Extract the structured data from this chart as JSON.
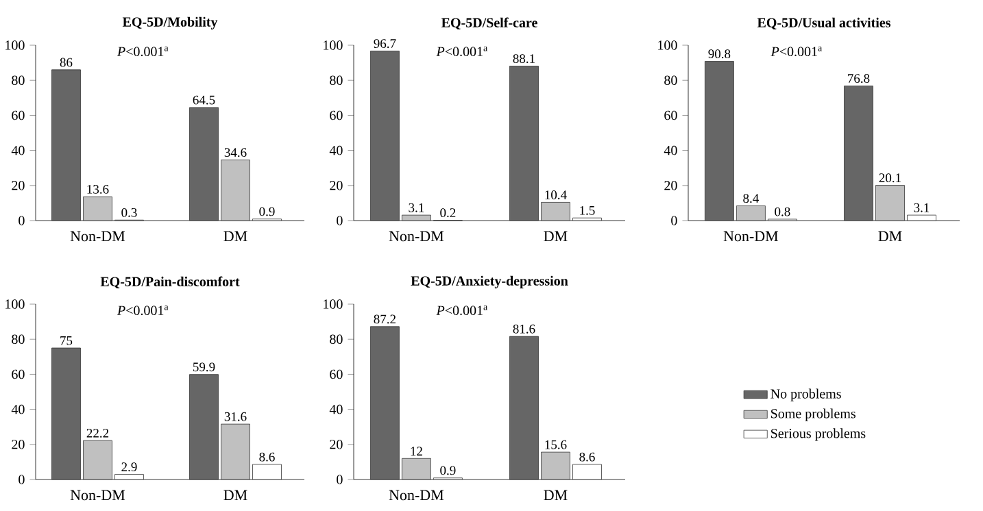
{
  "chart_data": [
    {
      "type": "bar",
      "title": "EQ-5D/Mobility",
      "annotations": [
        "*P*<0.001$^{a}$"
      ],
      "categories": [
        "Non-DM",
        "DM"
      ],
      "series": [
        {
          "color": "#666666",
          "values": [
            86,
            64.5
          ]
        },
        {
          "color": "#c0c0c0",
          "values": [
            13.6,
            34.6
          ]
        },
        {
          "color": "#ffffff",
          "values": [
            0.3,
            0.9
          ]
        }
      ],
      "ylim": [
        0,
        100
      ],
      "yticks": [
        0,
        20,
        40,
        60,
        80,
        100
      ],
      "data_labels": true
    },
    {
      "type": "bar",
      "title": "EQ-5D/Self-care",
      "annotations": [
        "*P*<0.001$^{a}$"
      ],
      "categories": [
        "Non-DM",
        "DM"
      ],
      "series": [
        {
          "color": "#666666",
          "values": [
            96.7,
            88.1
          ]
        },
        {
          "color": "#c0c0c0",
          "values": [
            3.1,
            10.4
          ]
        },
        {
          "color": "#ffffff",
          "values": [
            0.2,
            1.5
          ]
        }
      ],
      "ylim": [
        0,
        100
      ],
      "yticks": [
        0,
        20,
        40,
        60,
        80,
        100
      ],
      "data_labels": true
    },
    {
      "type": "bar",
      "title": "EQ-5D/Usual activities",
      "annotations": [
        "*P*<0.001$^{a}$"
      ],
      "categories": [
        "Non-DM",
        "DM"
      ],
      "series": [
        {
          "color": "#666666",
          "values": [
            90.8,
            76.8
          ]
        },
        {
          "color": "#c0c0c0",
          "values": [
            8.4,
            20.1
          ]
        },
        {
          "color": "#ffffff",
          "values": [
            0.8,
            3.1
          ]
        }
      ],
      "ylim": [
        0,
        100
      ],
      "yticks": [
        0,
        20,
        40,
        60,
        80,
        100
      ],
      "data_labels": true
    },
    {
      "type": "bar",
      "title": "EQ-5D/Pain-discomfort",
      "annotations": [
        "*P*<0.001$^{a}$"
      ],
      "categories": [
        "Non-DM",
        "DM"
      ],
      "series": [
        {
          "color": "#666666",
          "values": [
            75,
            59.9
          ]
        },
        {
          "color": "#c0c0c0",
          "values": [
            22.2,
            31.6
          ]
        },
        {
          "color": "#ffffff",
          "values": [
            2.9,
            8.6
          ]
        }
      ],
      "ylim": [
        0,
        100
      ],
      "yticks": [
        0,
        20,
        40,
        60,
        80,
        100
      ],
      "data_labels": true
    },
    {
      "type": "bar",
      "title": "EQ-5D/Anxiety-depression",
      "annotations": [
        "*P*<0.001$^{a}$"
      ],
      "categories": [
        "Non-DM",
        "DM"
      ],
      "series": [
        {
          "name": "No problems",
          "color": "#666666",
          "values": [
            87.2,
            81.6
          ]
        },
        {
          "name": "Some problems",
          "color": "#c0c0c0",
          "values": [
            12,
            15.6
          ]
        },
        {
          "name": "Serious problems",
          "color": "#ffffff",
          "values": [
            0.9,
            8.6
          ]
        }
      ],
      "ylim": [
        0,
        100
      ],
      "yticks": [
        0,
        20,
        40,
        60,
        80,
        100
      ],
      "data_labels": true,
      "legend": "right"
    }
  ]
}
